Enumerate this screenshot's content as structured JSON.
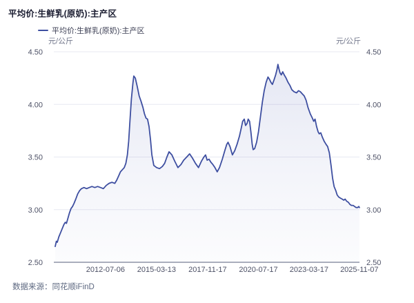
{
  "header": {
    "title": "平均价:生鲜乳(原奶):主产区"
  },
  "legend": {
    "series_label": "平均价:生鲜乳(原奶):主产区"
  },
  "axes": {
    "left_unit": "元/公斤",
    "right_unit": "元/公斤"
  },
  "footer": {
    "source_label": "数据来源：同花顺iFinD"
  },
  "colors": {
    "line": "#3D4EA0",
    "area_top": "rgba(84,100,180,0.16)",
    "area_mid": "rgba(84,100,180,0.07)",
    "area_bottom": "rgba(84,100,180,0.02)",
    "grid": "#e7e8f2",
    "axis": "#8e94a6",
    "tick_text": "#4d5166",
    "unit_text": "#73788c"
  },
  "chart_data": {
    "type": "area",
    "title": "平均价:生鲜乳(原奶):主产区",
    "ylabel": "元/公斤",
    "grid": true,
    "legend_position": "top-left",
    "ylim": [
      2.5,
      4.5
    ],
    "xlim": [
      2009.87,
      2025.855
    ],
    "y_ticks": [
      {
        "label": "2.50",
        "v": 2.5
      },
      {
        "label": "3.00",
        "v": 3.0
      },
      {
        "label": "3.50",
        "v": 3.5
      },
      {
        "label": "4.00",
        "v": 4.0
      },
      {
        "label": "4.50",
        "v": 4.5
      }
    ],
    "x_ticks": [
      {
        "label": "2012-07-06",
        "t": 2012.512
      },
      {
        "label": "2015-03-13",
        "t": 2015.195
      },
      {
        "label": "2017-11-17",
        "t": 2017.877
      },
      {
        "label": "2020-07-17",
        "t": 2020.543
      },
      {
        "label": "2023-03-17",
        "t": 2023.206
      },
      {
        "label": "2025-11-07",
        "t": 2025.849
      }
    ],
    "series": [
      {
        "name": "平均价:生鲜乳(原奶):主产区",
        "unit": "元/公斤",
        "points": [
          [
            2009.87,
            2.65
          ],
          [
            2009.93,
            2.7
          ],
          [
            2009.98,
            2.69
          ],
          [
            2010.06,
            2.74
          ],
          [
            2010.15,
            2.78
          ],
          [
            2010.24,
            2.82
          ],
          [
            2010.33,
            2.86
          ],
          [
            2010.4,
            2.88
          ],
          [
            2010.46,
            2.87
          ],
          [
            2010.54,
            2.92
          ],
          [
            2010.62,
            2.97
          ],
          [
            2010.7,
            3.01
          ],
          [
            2010.78,
            3.03
          ],
          [
            2010.86,
            3.06
          ],
          [
            2010.95,
            3.1
          ],
          [
            2011.05,
            3.15
          ],
          [
            2011.15,
            3.18
          ],
          [
            2011.25,
            3.2
          ],
          [
            2011.38,
            3.21
          ],
          [
            2011.52,
            3.2
          ],
          [
            2011.66,
            3.21
          ],
          [
            2011.8,
            3.22
          ],
          [
            2011.95,
            3.21
          ],
          [
            2012.1,
            3.22
          ],
          [
            2012.25,
            3.21
          ],
          [
            2012.4,
            3.2
          ],
          [
            2012.55,
            3.23
          ],
          [
            2012.7,
            3.25
          ],
          [
            2012.85,
            3.26
          ],
          [
            2013.0,
            3.25
          ],
          [
            2013.1,
            3.28
          ],
          [
            2013.2,
            3.32
          ],
          [
            2013.3,
            3.36
          ],
          [
            2013.4,
            3.38
          ],
          [
            2013.5,
            3.4
          ],
          [
            2013.58,
            3.44
          ],
          [
            2013.66,
            3.52
          ],
          [
            2013.73,
            3.65
          ],
          [
            2013.8,
            3.85
          ],
          [
            2013.87,
            4.05
          ],
          [
            2013.95,
            4.2
          ],
          [
            2014.0,
            4.27
          ],
          [
            2014.08,
            4.25
          ],
          [
            2014.18,
            4.17
          ],
          [
            2014.28,
            4.08
          ],
          [
            2014.38,
            4.03
          ],
          [
            2014.48,
            3.97
          ],
          [
            2014.56,
            3.91
          ],
          [
            2014.64,
            3.87
          ],
          [
            2014.72,
            3.86
          ],
          [
            2014.8,
            3.79
          ],
          [
            2014.88,
            3.66
          ],
          [
            2014.95,
            3.52
          ],
          [
            2015.05,
            3.42
          ],
          [
            2015.2,
            3.4
          ],
          [
            2015.35,
            3.39
          ],
          [
            2015.5,
            3.41
          ],
          [
            2015.62,
            3.44
          ],
          [
            2015.74,
            3.5
          ],
          [
            2015.85,
            3.55
          ],
          [
            2016.0,
            3.52
          ],
          [
            2016.15,
            3.46
          ],
          [
            2016.32,
            3.4
          ],
          [
            2016.48,
            3.43
          ],
          [
            2016.62,
            3.47
          ],
          [
            2016.78,
            3.5
          ],
          [
            2016.93,
            3.53
          ],
          [
            2017.08,
            3.49
          ],
          [
            2017.24,
            3.44
          ],
          [
            2017.4,
            3.4
          ],
          [
            2017.55,
            3.46
          ],
          [
            2017.68,
            3.5
          ],
          [
            2017.77,
            3.52
          ],
          [
            2017.85,
            3.47
          ],
          [
            2017.95,
            3.48
          ],
          [
            2018.05,
            3.45
          ],
          [
            2018.15,
            3.43
          ],
          [
            2018.26,
            3.4
          ],
          [
            2018.38,
            3.36
          ],
          [
            2018.5,
            3.4
          ],
          [
            2018.65,
            3.48
          ],
          [
            2018.78,
            3.56
          ],
          [
            2018.88,
            3.62
          ],
          [
            2018.95,
            3.64
          ],
          [
            2019.05,
            3.6
          ],
          [
            2019.18,
            3.52
          ],
          [
            2019.3,
            3.56
          ],
          [
            2019.42,
            3.62
          ],
          [
            2019.55,
            3.7
          ],
          [
            2019.65,
            3.78
          ],
          [
            2019.72,
            3.84
          ],
          [
            2019.8,
            3.86
          ],
          [
            2019.87,
            3.8
          ],
          [
            2019.95,
            3.82
          ],
          [
            2020.01,
            3.86
          ],
          [
            2020.08,
            3.84
          ],
          [
            2020.15,
            3.74
          ],
          [
            2020.22,
            3.62
          ],
          [
            2020.27,
            3.57
          ],
          [
            2020.35,
            3.58
          ],
          [
            2020.45,
            3.64
          ],
          [
            2020.55,
            3.74
          ],
          [
            2020.65,
            3.88
          ],
          [
            2020.75,
            4.02
          ],
          [
            2020.85,
            4.13
          ],
          [
            2020.95,
            4.21
          ],
          [
            2021.05,
            4.26
          ],
          [
            2021.12,
            4.24
          ],
          [
            2021.2,
            4.21
          ],
          [
            2021.28,
            4.19
          ],
          [
            2021.36,
            4.23
          ],
          [
            2021.45,
            4.28
          ],
          [
            2021.52,
            4.33
          ],
          [
            2021.57,
            4.38
          ],
          [
            2021.62,
            4.34
          ],
          [
            2021.68,
            4.3
          ],
          [
            2021.75,
            4.28
          ],
          [
            2021.82,
            4.31
          ],
          [
            2021.9,
            4.28
          ],
          [
            2022.0,
            4.25
          ],
          [
            2022.1,
            4.21
          ],
          [
            2022.2,
            4.18
          ],
          [
            2022.3,
            4.14
          ],
          [
            2022.42,
            4.12
          ],
          [
            2022.55,
            4.11
          ],
          [
            2022.65,
            4.13
          ],
          [
            2022.75,
            4.12
          ],
          [
            2022.85,
            4.1
          ],
          [
            2022.95,
            4.08
          ],
          [
            2023.05,
            4.04
          ],
          [
            2023.15,
            3.97
          ],
          [
            2023.27,
            3.91
          ],
          [
            2023.38,
            3.87
          ],
          [
            2023.45,
            3.84
          ],
          [
            2023.52,
            3.86
          ],
          [
            2023.6,
            3.79
          ],
          [
            2023.68,
            3.74
          ],
          [
            2023.74,
            3.72
          ],
          [
            2023.82,
            3.73
          ],
          [
            2023.9,
            3.69
          ],
          [
            2024.0,
            3.65
          ],
          [
            2024.1,
            3.62
          ],
          [
            2024.18,
            3.6
          ],
          [
            2024.27,
            3.54
          ],
          [
            2024.36,
            3.42
          ],
          [
            2024.44,
            3.3
          ],
          [
            2024.52,
            3.22
          ],
          [
            2024.61,
            3.18
          ],
          [
            2024.68,
            3.14
          ],
          [
            2024.76,
            3.12
          ],
          [
            2024.85,
            3.11
          ],
          [
            2024.95,
            3.1
          ],
          [
            2025.03,
            3.09
          ],
          [
            2025.1,
            3.1
          ],
          [
            2025.18,
            3.08
          ],
          [
            2025.27,
            3.07
          ],
          [
            2025.35,
            3.05
          ],
          [
            2025.43,
            3.04
          ],
          [
            2025.52,
            3.04
          ],
          [
            2025.6,
            3.03
          ],
          [
            2025.68,
            3.02
          ],
          [
            2025.76,
            3.02
          ],
          [
            2025.82,
            3.03
          ],
          [
            2025.85,
            3.02
          ]
        ]
      }
    ]
  }
}
